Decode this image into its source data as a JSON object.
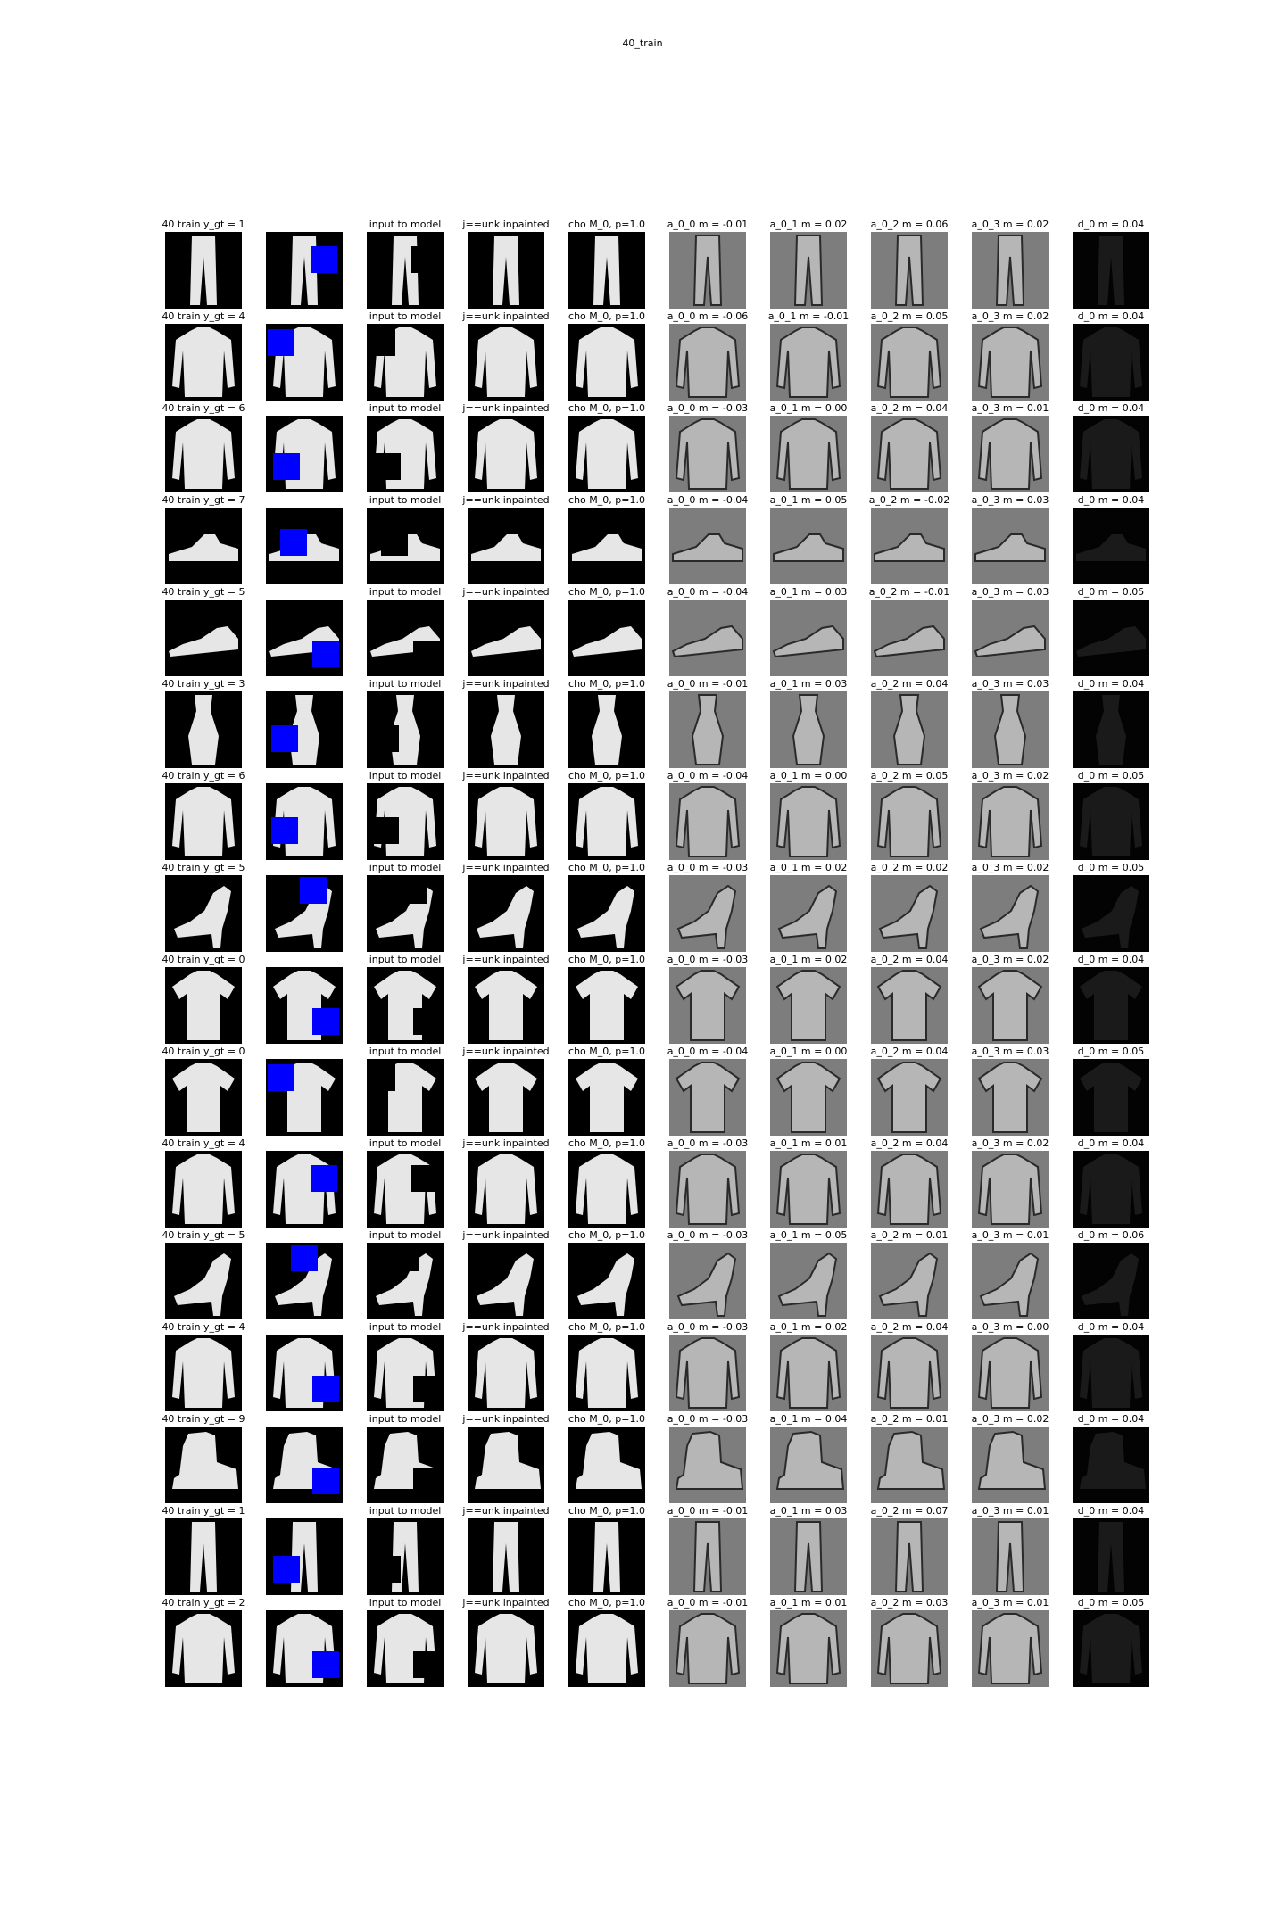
{
  "figure": {
    "title": "40_train",
    "background": "#ffffff",
    "mask_color": "#0000ff"
  },
  "columns": [
    {
      "key": "gt",
      "kind": "ground-truth"
    },
    {
      "key": "masked",
      "kind": "masked-input"
    },
    {
      "key": "input",
      "kind": "model-input"
    },
    {
      "key": "inpainted",
      "kind": "inpainted"
    },
    {
      "key": "cho",
      "kind": "chosen-mode"
    },
    {
      "key": "a0",
      "kind": "attention-0"
    },
    {
      "key": "a1",
      "kind": "attention-1"
    },
    {
      "key": "a2",
      "kind": "attention-2"
    },
    {
      "key": "a3",
      "kind": "attention-3"
    },
    {
      "key": "d0",
      "kind": "difference"
    }
  ],
  "rows": [
    {
      "item": "trouser",
      "mask_quadrant": "right-mid",
      "titles": [
        "40 train y_gt = 1",
        "",
        "input to model",
        "j==unk inpainted",
        "cho M_0, p=1.0",
        "a_0_0 m = -0.01",
        "a_0_1 m = 0.02",
        "a_0_2 m = 0.06",
        "a_0_3 m = 0.02",
        "d_0 m = 0.04"
      ]
    },
    {
      "item": "shirt",
      "mask_quadrant": "left-top",
      "titles": [
        "40 train y_gt = 4",
        "",
        "input to model",
        "j==unk inpainted",
        "cho M_0, p=1.0",
        "a_0_0 m = -0.06",
        "a_0_1 m = -0.01",
        "a_0_2 m = 0.05",
        "a_0_3 m = 0.02",
        "d_0 m = 0.04"
      ]
    },
    {
      "item": "shirt",
      "mask_quadrant": "left-bottom",
      "titles": [
        "40 train y_gt = 6",
        "",
        "input to model",
        "j==unk inpainted",
        "cho M_0, p=1.0",
        "a_0_0 m = -0.03",
        "a_0_1 m = 0.00",
        "a_0_2 m = 0.04",
        "a_0_3 m = 0.01",
        "d_0 m = 0.04"
      ]
    },
    {
      "item": "sneaker",
      "mask_quadrant": "center",
      "titles": [
        "40 train y_gt = 7",
        "",
        "input to model",
        "j==unk inpainted",
        "cho M_0, p=1.0",
        "a_0_0 m = -0.04",
        "a_0_1 m = 0.05",
        "a_0_2 m = -0.02",
        "a_0_3 m = 0.03",
        "d_0 m = 0.04"
      ]
    },
    {
      "item": "sandal",
      "mask_quadrant": "right-bottom",
      "titles": [
        "40 train y_gt = 5",
        "",
        "input to model",
        "j==unk inpainted",
        "cho M_0, p=1.0",
        "a_0_0 m = -0.04",
        "a_0_1 m = 0.03",
        "a_0_2 m = -0.01",
        "a_0_3 m = 0.03",
        "d_0 m = 0.05"
      ]
    },
    {
      "item": "dress",
      "mask_quadrant": "left-mid",
      "titles": [
        "40 train y_gt = 3",
        "",
        "input to model",
        "j==unk inpainted",
        "cho M_0, p=1.0",
        "a_0_0 m = -0.01",
        "a_0_1 m = 0.03",
        "a_0_2 m = 0.04",
        "a_0_3 m = 0.03",
        "d_0 m = 0.04"
      ]
    },
    {
      "item": "shirt",
      "mask_quadrant": "left-mid",
      "titles": [
        "40 train y_gt = 6",
        "",
        "input to model",
        "j==unk inpainted",
        "cho M_0, p=1.0",
        "a_0_0 m = -0.04",
        "a_0_1 m = 0.00",
        "a_0_2 m = 0.05",
        "a_0_3 m = 0.02",
        "d_0 m = 0.05"
      ]
    },
    {
      "item": "heel",
      "mask_quadrant": "right-top",
      "titles": [
        "40 train y_gt = 5",
        "",
        "input to model",
        "j==unk inpainted",
        "cho M_0, p=1.0",
        "a_0_0 m = -0.03",
        "a_0_1 m = 0.02",
        "a_0_2 m = 0.02",
        "a_0_3 m = 0.02",
        "d_0 m = 0.05"
      ]
    },
    {
      "item": "tshirt",
      "mask_quadrant": "right-bottom",
      "titles": [
        "40 train y_gt = 0",
        "",
        "input to model",
        "j==unk inpainted",
        "cho M_0, p=1.0",
        "a_0_0 m = -0.03",
        "a_0_1 m = 0.02",
        "a_0_2 m = 0.04",
        "a_0_3 m = 0.02",
        "d_0 m = 0.04"
      ]
    },
    {
      "item": "tshirt",
      "mask_quadrant": "left-top",
      "titles": [
        "40 train y_gt = 0",
        "",
        "input to model",
        "j==unk inpainted",
        "cho M_0, p=1.0",
        "a_0_0 m = -0.04",
        "a_0_1 m = 0.00",
        "a_0_2 m = 0.04",
        "a_0_3 m = 0.03",
        "d_0 m = 0.05"
      ]
    },
    {
      "item": "shirt",
      "mask_quadrant": "right-mid",
      "titles": [
        "40 train y_gt = 4",
        "",
        "input to model",
        "j==unk inpainted",
        "cho M_0, p=1.0",
        "a_0_0 m = -0.03",
        "a_0_1 m = 0.01",
        "a_0_2 m = 0.04",
        "a_0_3 m = 0.02",
        "d_0 m = 0.04"
      ]
    },
    {
      "item": "heel",
      "mask_quadrant": "center-top",
      "titles": [
        "40 train y_gt = 5",
        "",
        "input to model",
        "j==unk inpainted",
        "cho M_0, p=1.0",
        "a_0_0 m = -0.03",
        "a_0_1 m = 0.05",
        "a_0_2 m = 0.01",
        "a_0_3 m = 0.01",
        "d_0 m = 0.06"
      ]
    },
    {
      "item": "shirt",
      "mask_quadrant": "right-bottom",
      "titles": [
        "40 train y_gt = 4",
        "",
        "input to model",
        "j==unk inpainted",
        "cho M_0, p=1.0",
        "a_0_0 m = -0.03",
        "a_0_1 m = 0.02",
        "a_0_2 m = 0.04",
        "a_0_3 m = 0.00",
        "d_0 m = 0.04"
      ]
    },
    {
      "item": "boot",
      "mask_quadrant": "right-bottom",
      "titles": [
        "40 train y_gt = 9",
        "",
        "input to model",
        "j==unk inpainted",
        "cho M_0, p=1.0",
        "a_0_0 m = -0.03",
        "a_0_1 m = 0.04",
        "a_0_2 m = 0.01",
        "a_0_3 m = 0.02",
        "d_0 m = 0.04"
      ]
    },
    {
      "item": "trouser",
      "mask_quadrant": "left-bottom",
      "titles": [
        "40 train y_gt = 1",
        "",
        "input to model",
        "j==unk inpainted",
        "cho M_0, p=1.0",
        "a_0_0 m = -0.01",
        "a_0_1 m = 0.03",
        "a_0_2 m = 0.07",
        "a_0_3 m = 0.01",
        "d_0 m = 0.04"
      ]
    },
    {
      "item": "shirt",
      "mask_quadrant": "right-bottom",
      "titles": [
        "40 train y_gt = 2",
        "",
        "input to model",
        "j==unk inpainted",
        "cho M_0, p=1.0",
        "a_0_0 m = -0.01",
        "a_0_1 m = 0.01",
        "a_0_2 m = 0.03",
        "a_0_3 m = 0.01",
        "d_0 m = 0.05"
      ]
    }
  ]
}
